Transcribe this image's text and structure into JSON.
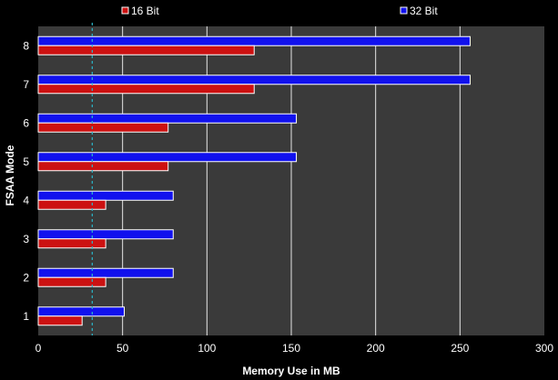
{
  "chart_data": {
    "type": "bar",
    "orientation": "horizontal",
    "categories": [
      "1",
      "2",
      "3",
      "4",
      "5",
      "6",
      "7",
      "8"
    ],
    "series": [
      {
        "name": "16 Bit",
        "color": "#cc1111",
        "values": [
          26,
          40,
          40,
          40,
          77,
          77,
          128,
          128
        ]
      },
      {
        "name": "32 Bit",
        "color": "#1111ee",
        "values": [
          51,
          80,
          80,
          80,
          153,
          153,
          256,
          256
        ]
      }
    ],
    "reference_line": {
      "value": 32,
      "color": "#2ab7c9",
      "style": "dashed"
    },
    "xlabel": "Memory Use in MB",
    "ylabel": "FSAA Mode",
    "xlim": [
      0,
      300
    ],
    "xticks": [
      0,
      50,
      100,
      150,
      200,
      250,
      300
    ],
    "grid": "vertical",
    "legend_placement": "top",
    "plot_background": "#3a3a3a"
  }
}
